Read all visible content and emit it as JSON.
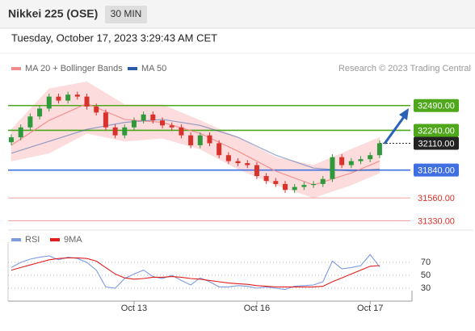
{
  "header": {
    "title": "Nikkei 225 (OSE)",
    "timeframe": "30 MIN",
    "timestamp": "Tuesday, October 17, 2023 3:29:43 AM CET",
    "source": "Research © 2023 Trading Central"
  },
  "chart_data": [
    {
      "type": "candlestick",
      "categories": [
        null,
        null,
        null,
        null,
        null,
        null,
        null,
        null,
        null,
        null,
        null,
        null,
        null,
        "Oct 13",
        null,
        null,
        null,
        null,
        null,
        null,
        null,
        null,
        null,
        null,
        null,
        null,
        "Oct 16",
        null,
        null,
        null,
        null,
        null,
        null,
        null,
        null,
        null,
        null,
        null,
        "Oct 17",
        null
      ],
      "open": [
        32120,
        32170,
        32270,
        32380,
        32460,
        32580,
        32540,
        32600,
        32580,
        32480,
        32420,
        32270,
        32190,
        32270,
        32340,
        32400,
        32340,
        32290,
        32270,
        32190,
        32090,
        32190,
        32110,
        31990,
        31930,
        31910,
        31890,
        31780,
        31730,
        31700,
        31640,
        31670,
        31690,
        31700,
        31750,
        31970,
        31890,
        31930,
        31950,
        31990
      ],
      "high": [
        32200,
        32300,
        32410,
        32490,
        32610,
        32610,
        32630,
        32630,
        32610,
        32510,
        32450,
        32300,
        32300,
        32370,
        32430,
        32430,
        32370,
        32320,
        32300,
        32220,
        32220,
        32220,
        32140,
        32020,
        31960,
        31940,
        31920,
        31810,
        31760,
        31730,
        31700,
        31720,
        31730,
        31780,
        32000,
        32000,
        31960,
        31980,
        32020,
        32140
      ],
      "low": [
        32090,
        32140,
        32240,
        32350,
        32430,
        32510,
        32510,
        32550,
        32450,
        32390,
        32240,
        32160,
        32160,
        32240,
        32310,
        32310,
        32260,
        32240,
        32160,
        32060,
        32060,
        32080,
        31960,
        31900,
        31880,
        31860,
        31750,
        31700,
        31670,
        31610,
        31610,
        31640,
        31660,
        31670,
        31720,
        31860,
        31860,
        31900,
        31920,
        31960
      ],
      "close": [
        32170,
        32270,
        32380,
        32460,
        32580,
        32540,
        32600,
        32580,
        32480,
        32420,
        32270,
        32190,
        32270,
        32340,
        32400,
        32340,
        32290,
        32270,
        32190,
        32090,
        32190,
        32110,
        31990,
        31930,
        31910,
        31890,
        31780,
        31730,
        31700,
        31640,
        31670,
        31690,
        31700,
        31750,
        31970,
        31890,
        31930,
        31950,
        31990,
        32110
      ],
      "up_color": "#2f9a3c",
      "down_color": "#d8322c",
      "ylim": [
        31260,
        32740
      ],
      "series": [
        {
          "name": "MA 20 + Bollinger Bands",
          "color": "#f28b8b",
          "band_color": "#fcdcdc",
          "x": [
            0,
            4,
            8,
            12,
            16,
            20,
            24,
            28,
            32,
            36,
            39
          ],
          "values": [
            32090,
            32340,
            32510,
            32350,
            32320,
            32210,
            32030,
            31830,
            31690,
            31810,
            31930
          ],
          "upper": [
            32250,
            32660,
            32730,
            32500,
            32500,
            32340,
            32170,
            31970,
            31890,
            32050,
            32170
          ],
          "lower": [
            31930,
            32010,
            32210,
            32130,
            32160,
            32050,
            31850,
            31690,
            31560,
            31690,
            31810
          ]
        },
        {
          "name": "MA 50",
          "color": "#2b5aa8",
          "x": [
            0,
            4,
            8,
            12,
            16,
            20,
            24,
            28,
            32,
            36,
            39
          ],
          "values": [
            32010,
            32130,
            32250,
            32320,
            32350,
            32290,
            32170,
            31990,
            31860,
            31830,
            31850
          ]
        }
      ],
      "levels": [
        {
          "value": 32490,
          "label": "32490.00",
          "color": "#4fa81c",
          "boxed": true
        },
        {
          "value": 32240,
          "label": "32240.00",
          "color": "#4fa81c",
          "boxed": true
        },
        {
          "value": 32110,
          "label": "32110.00",
          "color": "#222222",
          "boxed": true,
          "dashed": true
        },
        {
          "value": 31840,
          "label": "31840.00",
          "color": "#3f6fe0",
          "boxed": true
        },
        {
          "value": 31560,
          "label": "31560.00",
          "color": "#e0302a",
          "boxed": false
        },
        {
          "value": 31330,
          "label": "31330.00",
          "color": "#e0302a",
          "boxed": false
        }
      ]
    },
    {
      "type": "line",
      "ylim": [
        10,
        100
      ],
      "yticks": [
        30,
        50,
        70
      ],
      "series": [
        {
          "name": "RSI",
          "color": "#7d9be0",
          "values": [
            62,
            70,
            75,
            78,
            80,
            74,
            78,
            76,
            70,
            58,
            32,
            30,
            45,
            52,
            58,
            48,
            45,
            50,
            42,
            35,
            46,
            40,
            32,
            32,
            34,
            33,
            30,
            32,
            30,
            28,
            33,
            34,
            35,
            40,
            72,
            60,
            62,
            65,
            82,
            63
          ]
        },
        {
          "name": "9MA",
          "color": "#e01e1e",
          "values": [
            58,
            62,
            66,
            70,
            74,
            76,
            77,
            77,
            76,
            72,
            62,
            52,
            46,
            44,
            45,
            47,
            47,
            48,
            47,
            45,
            44,
            42,
            40,
            38,
            37,
            36,
            34,
            33,
            32,
            32,
            32,
            32,
            32,
            33,
            40,
            46,
            52,
            58,
            64,
            65
          ]
        }
      ]
    }
  ]
}
